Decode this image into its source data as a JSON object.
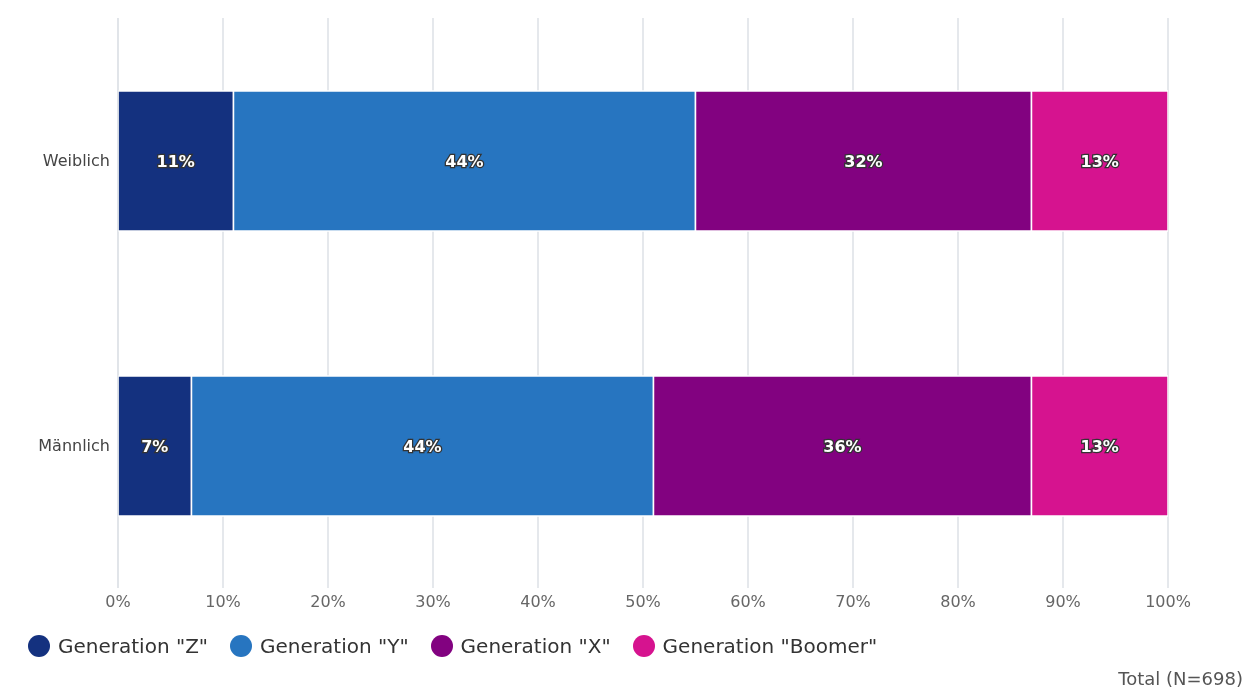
{
  "chart_data": {
    "type": "bar",
    "orientation": "horizontal",
    "stacked": true,
    "categories": [
      "Weiblich",
      "Männlich"
    ],
    "series": [
      {
        "name": "Generation \"Z\"",
        "color": "#14317f",
        "values": [
          11,
          7
        ],
        "value_labels": [
          "11%",
          "7%"
        ]
      },
      {
        "name": "Generation \"Y\"",
        "color": "#2775c0",
        "values": [
          44,
          44
        ],
        "value_labels": [
          "44%",
          "44%"
        ]
      },
      {
        "name": "Generation \"X\"",
        "color": "#820280",
        "values": [
          32,
          36
        ],
        "value_labels": [
          "32%",
          "36%"
        ]
      },
      {
        "name": "Generation \"Boomer\"",
        "color": "#d6138f",
        "values": [
          13,
          13
        ],
        "value_labels": [
          "13%",
          "13%"
        ]
      }
    ],
    "xlim": [
      0,
      100
    ],
    "xticks": [
      {
        "value": 0,
        "label": "0%"
      },
      {
        "value": 10,
        "label": "10%"
      },
      {
        "value": 20,
        "label": "20%"
      },
      {
        "value": 30,
        "label": "30%"
      },
      {
        "value": 40,
        "label": "40%"
      },
      {
        "value": 50,
        "label": "50%"
      },
      {
        "value": 60,
        "label": "60%"
      },
      {
        "value": 70,
        "label": "70%"
      },
      {
        "value": 80,
        "label": "80%"
      },
      {
        "value": 90,
        "label": "90%"
      },
      {
        "value": 100,
        "label": "100%"
      }
    ],
    "grid": "x",
    "legend": "bottom left",
    "annotations": [
      "Total (N=698)"
    ]
  }
}
